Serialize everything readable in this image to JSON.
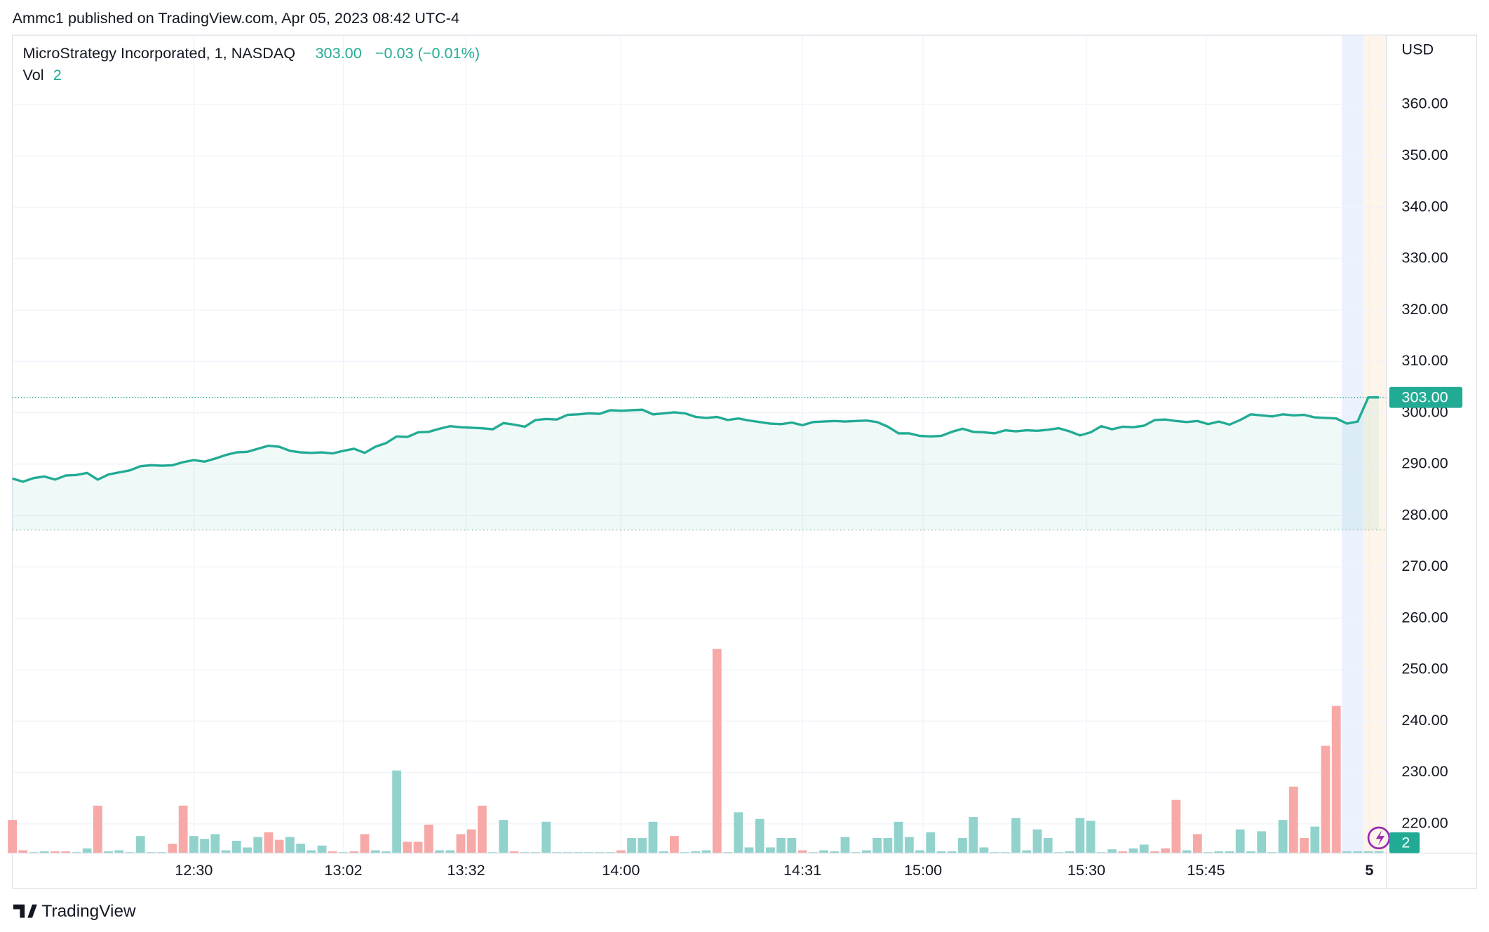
{
  "chart_data": {
    "type": "line",
    "publisher": "Ammc1 published on TradingView.com, Apr 05, 2023 08:42 UTC-4",
    "brand": "TradingView",
    "currency": "USD",
    "header": {
      "price": "303.00",
      "change": "−0.03 (−0.01%)"
    },
    "grid": true,
    "ylim": [
      214.3,
      373.5
    ],
    "yticks": [
      {
        "value": 220,
        "label": "220.00"
      },
      {
        "value": 230,
        "label": "230.00"
      },
      {
        "value": 240,
        "label": "240.00"
      },
      {
        "value": 250,
        "label": "250.00"
      },
      {
        "value": 260,
        "label": "260.00"
      },
      {
        "value": 270,
        "label": "270.00"
      },
      {
        "value": 280,
        "label": "280.00"
      },
      {
        "value": 290,
        "label": "290.00"
      },
      {
        "value": 300,
        "label": "300.00"
      },
      {
        "value": 310,
        "label": "310.00"
      },
      {
        "value": 320,
        "label": "320.00"
      },
      {
        "value": 330,
        "label": "330.00"
      },
      {
        "value": 340,
        "label": "340.00"
      },
      {
        "value": 350,
        "label": "350.00"
      },
      {
        "value": 360,
        "label": "360.00"
      }
    ],
    "xlim": [
      0,
      128.7
    ],
    "xticks": [
      {
        "value": 17,
        "label": "12:30"
      },
      {
        "value": 31,
        "label": "13:02"
      },
      {
        "value": 42.5,
        "label": "13:32"
      },
      {
        "value": 57,
        "label": "14:00"
      },
      {
        "value": 74,
        "label": "14:31"
      },
      {
        "value": 85.3,
        "label": "15:00"
      },
      {
        "value": 100.6,
        "label": "15:30"
      },
      {
        "value": 111.8,
        "label": "15:45"
      },
      {
        "value": 127.1,
        "label": "5"
      }
    ],
    "y2lim": [
      0,
      861
    ],
    "base_value": 277.2,
    "series": [
      {
        "name": "MicroStrategy Incorporated, 1, NASDAQ",
        "color": "#22ab94",
        "values": [
          287.2,
          286.6,
          287.3,
          287.6,
          287.0,
          287.8,
          287.9,
          288.3,
          287.0,
          288.0,
          288.4,
          288.8,
          289.6,
          289.8,
          289.7,
          289.8,
          290.4,
          290.8,
          290.5,
          291.1,
          291.8,
          292.3,
          292.4,
          293.0,
          293.6,
          293.4,
          292.6,
          292.3,
          292.2,
          292.3,
          292.1,
          292.6,
          293.0,
          292.2,
          293.4,
          294.1,
          295.4,
          295.3,
          296.2,
          296.3,
          296.9,
          297.4,
          297.2,
          297.1,
          297.0,
          296.8,
          298.0,
          297.7,
          297.3,
          298.6,
          298.8,
          298.7,
          299.6,
          299.7,
          299.9,
          299.8,
          300.5,
          300.4,
          300.5,
          300.6,
          299.7,
          299.9,
          300.1,
          299.9,
          299.2,
          299.0,
          299.2,
          298.6,
          298.9,
          298.5,
          298.2,
          297.9,
          297.8,
          298.1,
          297.6,
          298.2,
          298.3,
          298.4,
          298.3,
          298.4,
          298.5,
          298.2,
          297.3,
          296.0,
          296.0,
          295.5,
          295.4,
          295.5,
          296.3,
          296.9,
          296.3,
          296.2,
          296.0,
          296.6,
          296.4,
          296.6,
          296.5,
          296.7,
          297.0,
          296.4,
          295.6,
          296.2,
          297.4,
          296.8,
          297.3,
          297.2,
          297.5,
          298.6,
          298.7,
          298.4,
          298.2,
          298.4,
          297.8,
          298.3,
          297.7,
          298.6,
          299.7,
          299.5,
          299.3,
          299.7,
          299.5,
          299.6,
          299.1,
          299.0,
          298.9,
          297.9,
          298.3,
          303.0,
          303.0
        ]
      },
      {
        "name": "Vol",
        "axis": "y2",
        "values": [
          35,
          3,
          1,
          2,
          2,
          2,
          1,
          5,
          50,
          2,
          3,
          1,
          18,
          1,
          1,
          10,
          50,
          18,
          15,
          20,
          3,
          13,
          6,
          17,
          22,
          14,
          17,
          10,
          3,
          8,
          2,
          1,
          2,
          20,
          3,
          2,
          87,
          12,
          12,
          30,
          3,
          3,
          20,
          25,
          50,
          1,
          35,
          2,
          1,
          1,
          33,
          1,
          1,
          1,
          1,
          1,
          1,
          3,
          16,
          16,
          33,
          2,
          18,
          1,
          2,
          3,
          215,
          1,
          43,
          6,
          36,
          6,
          16,
          16,
          3,
          1,
          3,
          2,
          17,
          1,
          3,
          16,
          16,
          33,
          17,
          3,
          22,
          2,
          2,
          16,
          38,
          6,
          1,
          1,
          37,
          3,
          25,
          16,
          1,
          2,
          37,
          34,
          1,
          4,
          2,
          5,
          9,
          2,
          5,
          56,
          3,
          20,
          1,
          2,
          2,
          25,
          2,
          23,
          1,
          35,
          70,
          16,
          28,
          113,
          155,
          2,
          2,
          2,
          2
        ],
        "colors": [
          "#f7a9a7",
          "#f7a9a7",
          "#92d2cc",
          "#92d2cc",
          "#f7a9a7",
          "#f7a9a7",
          "#92d2cc",
          "#92d2cc",
          "#f7a9a7",
          "#92d2cc",
          "#92d2cc",
          "#92d2cc",
          "#92d2cc",
          "#92d2cc",
          "#92d2cc",
          "#f7a9a7",
          "#f7a9a7",
          "#92d2cc",
          "#92d2cc",
          "#92d2cc",
          "#92d2cc",
          "#92d2cc",
          "#92d2cc",
          "#92d2cc",
          "#f7a9a7",
          "#f7a9a7",
          "#92d2cc",
          "#92d2cc",
          "#92d2cc",
          "#92d2cc",
          "#f7a9a7",
          "#92d2cc",
          "#f7a9a7",
          "#f7a9a7",
          "#92d2cc",
          "#92d2cc",
          "#92d2cc",
          "#f7a9a7",
          "#f7a9a7",
          "#f7a9a7",
          "#92d2cc",
          "#92d2cc",
          "#f7a9a7",
          "#f7a9a7",
          "#f7a9a7",
          "#92d2cc",
          "#92d2cc",
          "#f7a9a7",
          "#92d2cc",
          "#92d2cc",
          "#92d2cc",
          "#92d2cc",
          "#92d2cc",
          "#92d2cc",
          "#92d2cc",
          "#92d2cc",
          "#92d2cc",
          "#f7a9a7",
          "#92d2cc",
          "#92d2cc",
          "#92d2cc",
          "#92d2cc",
          "#f7a9a7",
          "#92d2cc",
          "#92d2cc",
          "#92d2cc",
          "#f7a9a7",
          "#92d2cc",
          "#92d2cc",
          "#92d2cc",
          "#92d2cc",
          "#92d2cc",
          "#92d2cc",
          "#92d2cc",
          "#f7a9a7",
          "#92d2cc",
          "#92d2cc",
          "#92d2cc",
          "#92d2cc",
          "#92d2cc",
          "#92d2cc",
          "#92d2cc",
          "#92d2cc",
          "#92d2cc",
          "#92d2cc",
          "#92d2cc",
          "#92d2cc",
          "#92d2cc",
          "#92d2cc",
          "#92d2cc",
          "#92d2cc",
          "#92d2cc",
          "#92d2cc",
          "#92d2cc",
          "#92d2cc",
          "#92d2cc",
          "#92d2cc",
          "#92d2cc",
          "#92d2cc",
          "#92d2cc",
          "#92d2cc",
          "#92d2cc",
          "#92d2cc",
          "#92d2cc",
          "#f7a9a7",
          "#92d2cc",
          "#92d2cc",
          "#f7a9a7",
          "#f7a9a7",
          "#f7a9a7",
          "#92d2cc",
          "#f7a9a7",
          "#92d2cc",
          "#92d2cc",
          "#92d2cc",
          "#92d2cc",
          "#92d2cc",
          "#92d2cc",
          "#92d2cc",
          "#92d2cc",
          "#f7a9a7",
          "#f7a9a7",
          "#92d2cc",
          "#f7a9a7",
          "#f7a9a7",
          "#92d2cc",
          "#92d2cc",
          "#92d2cc",
          "#92d2cc"
        ]
      }
    ]
  }
}
